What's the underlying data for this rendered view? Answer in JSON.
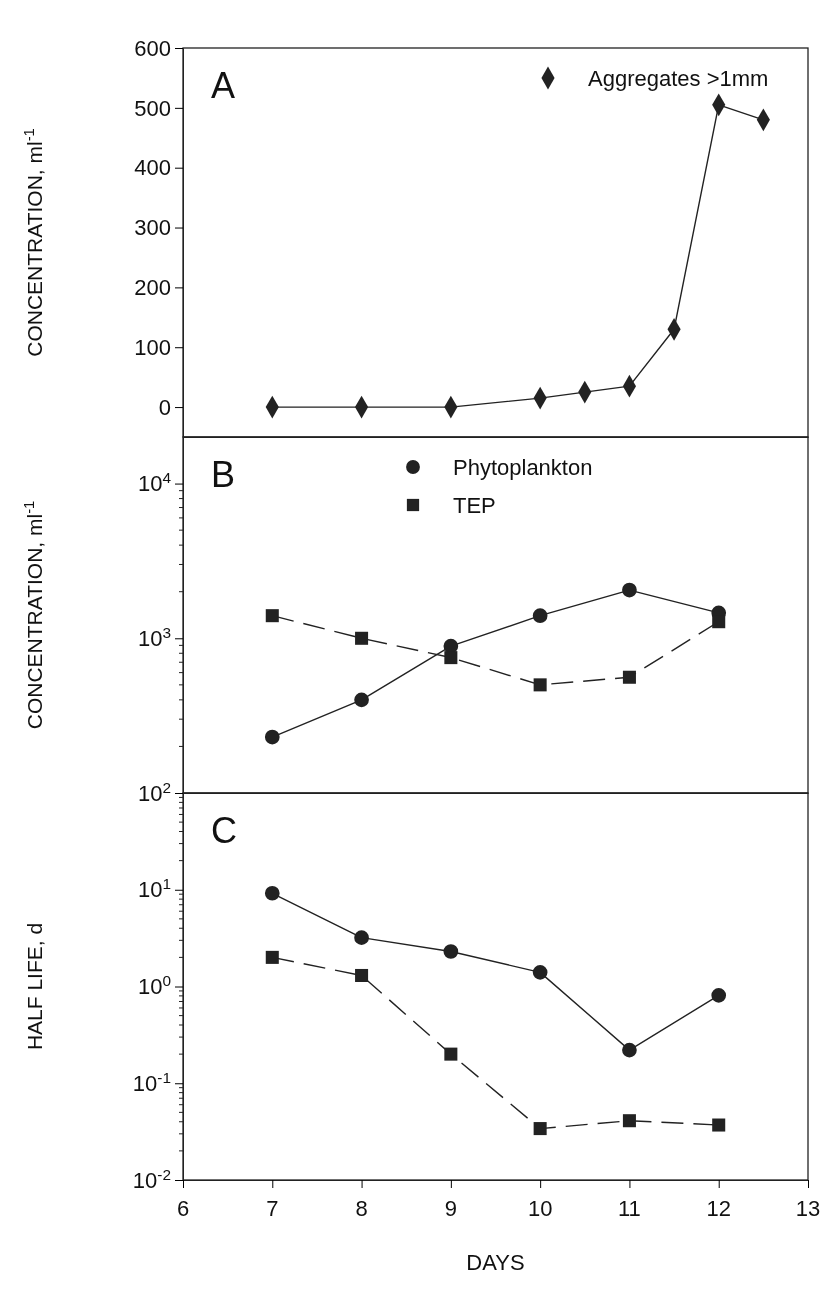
{
  "chart_data": [
    {
      "type": "line",
      "title": "A",
      "ylabel": "CONCENTRATION,  ml$^{-1}$",
      "xlim": [
        6,
        13
      ],
      "xticks": [
        6,
        7,
        8,
        9,
        10,
        11,
        12,
        13
      ],
      "ylim": [
        -50,
        600
      ],
      "yticks": [
        0,
        100,
        200,
        300,
        400,
        500,
        600
      ],
      "tick_labels": "y",
      "legend": "top right",
      "grid": false,
      "series": [
        {
          "name": "Aggregates >1mm",
          "color": "#222222",
          "marker": "diamond",
          "line_style": "solid",
          "x": [
            7,
            8,
            9,
            10,
            10.5,
            11,
            11.5,
            12,
            12.5
          ],
          "values": [
            0,
            0,
            0,
            15,
            25,
            35,
            130,
            505,
            480
          ]
        }
      ]
    },
    {
      "type": "line",
      "title": "B",
      "ylabel": "CONCENTRATION,  ml$^{-1}$",
      "xlim": [
        6,
        13
      ],
      "xticks": [
        6,
        7,
        8,
        9,
        10,
        11,
        12,
        13
      ],
      "ylim": [
        100,
        20000
      ],
      "log": "y",
      "yticks": [
        {
          "value": 100,
          "label": "10$^{2}$"
        },
        {
          "value": 1000,
          "label": "10$^{3}$"
        },
        {
          "value": 10000,
          "label": "10$^{4}$"
        }
      ],
      "tick_labels": "y",
      "legend": "top",
      "grid": false,
      "series": [
        {
          "name": "Phytoplankton",
          "color": "#222222",
          "marker": "circle",
          "line_style": "solid",
          "x": [
            7,
            8,
            9,
            10,
            11,
            12
          ],
          "values": [
            230,
            400,
            890,
            1400,
            2050,
            1460
          ]
        },
        {
          "name": "TEP",
          "color": "#222222",
          "marker": "square",
          "line_style": "dashed",
          "x": [
            7,
            8,
            9,
            10,
            11,
            12
          ],
          "values": [
            1400,
            1000,
            750,
            500,
            560,
            1280
          ]
        }
      ]
    },
    {
      "type": "line",
      "title": "C",
      "ylabel": "HALF LIFE,  d",
      "xlabel": "DAYS",
      "xlim": [
        6,
        13
      ],
      "xticks": [
        6,
        7,
        8,
        9,
        10,
        11,
        12,
        13
      ],
      "ylim": [
        0.01,
        100
      ],
      "log": "y",
      "yticks": [
        {
          "value": 100,
          "label": null
        },
        {
          "value": 10,
          "label": "10$^{1}$"
        },
        {
          "value": 1,
          "label": "10$^{0}$"
        },
        {
          "value": 0.1,
          "label": "10$^{-1}$"
        },
        {
          "value": 0.01,
          "label": "10$^{-2}$"
        }
      ],
      "grid": false,
      "series": [
        {
          "color": "#222222",
          "marker": "circle",
          "line_style": "solid",
          "x": [
            7,
            8,
            9,
            10,
            11,
            12
          ],
          "values": [
            9.2,
            3.2,
            2.3,
            1.4,
            0.22,
            0.81
          ]
        },
        {
          "color": "#222222",
          "marker": "square",
          "line_style": "dashed",
          "x": [
            7,
            8,
            9,
            10,
            11,
            12
          ],
          "values": [
            2.0,
            1.3,
            0.2,
            0.034,
            0.041,
            0.037
          ]
        }
      ]
    }
  ]
}
